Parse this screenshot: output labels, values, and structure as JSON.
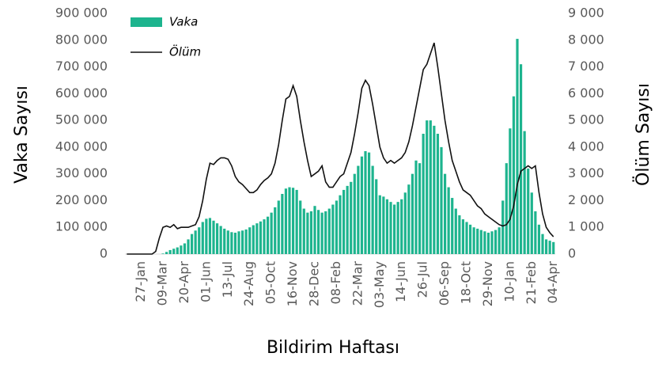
{
  "chart_data": {
    "type": "bar_line",
    "x_label": "Bildirim Haftası",
    "y_label": "Vaka Sayısı",
    "y2_label": "Ölüm Sayısı",
    "legend": "top-left",
    "categories": [
      null,
      null,
      null,
      null,
      "27-Jan",
      null,
      null,
      null,
      null,
      null,
      "09-Mar",
      null,
      null,
      null,
      null,
      null,
      "20-Apr",
      null,
      null,
      null,
      null,
      null,
      "01-Jun",
      null,
      null,
      null,
      null,
      null,
      "13-Jul",
      null,
      null,
      null,
      null,
      null,
      "24-Aug",
      null,
      null,
      null,
      null,
      null,
      "05-Oct",
      null,
      null,
      null,
      null,
      null,
      "16-Nov",
      null,
      null,
      null,
      null,
      null,
      "28-Dec",
      null,
      null,
      null,
      null,
      null,
      "08-Feb",
      null,
      null,
      null,
      null,
      null,
      "22-Mar",
      null,
      null,
      null,
      null,
      null,
      "03-May",
      null,
      null,
      null,
      null,
      null,
      "14-Jun",
      null,
      null,
      null,
      null,
      null,
      "26-Jul",
      null,
      null,
      null,
      null,
      null,
      "06-Sep",
      null,
      null,
      null,
      null,
      null,
      "18-Oct",
      null,
      null,
      null,
      null,
      null,
      "29-Nov",
      null,
      null,
      null,
      null,
      null,
      "10-Jan",
      null,
      null,
      null,
      null,
      null,
      "21-Feb",
      null,
      null,
      null,
      null,
      null,
      "04-Apr"
    ],
    "series": [
      {
        "name": "Vaka",
        "kind": "bar",
        "color": "#1db48e",
        "values": [
          0,
          0,
          0,
          0,
          0,
          0,
          0,
          0,
          0,
          0,
          2000,
          8000,
          15000,
          20000,
          25000,
          32000,
          40000,
          55000,
          75000,
          88000,
          100000,
          120000,
          132000,
          135000,
          125000,
          115000,
          105000,
          95000,
          88000,
          82000,
          80000,
          85000,
          88000,
          92000,
          100000,
          108000,
          115000,
          122000,
          130000,
          140000,
          155000,
          175000,
          200000,
          225000,
          245000,
          250000,
          248000,
          240000,
          200000,
          170000,
          155000,
          160000,
          180000,
          165000,
          155000,
          160000,
          170000,
          185000,
          200000,
          220000,
          240000,
          255000,
          270000,
          300000,
          330000,
          365000,
          385000,
          380000,
          330000,
          280000,
          220000,
          215000,
          205000,
          195000,
          185000,
          195000,
          205000,
          230000,
          260000,
          300000,
          350000,
          340000,
          450000,
          500000,
          500000,
          480000,
          450000,
          400000,
          300000,
          250000,
          210000,
          170000,
          145000,
          130000,
          120000,
          110000,
          100000,
          95000,
          90000,
          85000,
          80000,
          85000,
          90000,
          100000,
          200000,
          340000,
          470000,
          590000,
          805000,
          710000,
          460000,
          320000,
          230000,
          160000,
          110000,
          75000,
          55000,
          50000,
          45000
        ]
      },
      {
        "name": "Ölüm",
        "kind": "line",
        "axis": "y2",
        "color": "#111111",
        "values": [
          0,
          0,
          0,
          0,
          0,
          0,
          0,
          0,
          100,
          600,
          1000,
          1050,
          1000,
          1100,
          950,
          1000,
          1000,
          1000,
          1050,
          1100,
          1400,
          2000,
          2800,
          3400,
          3350,
          3500,
          3600,
          3600,
          3550,
          3300,
          2900,
          2700,
          2600,
          2450,
          2300,
          2300,
          2400,
          2600,
          2750,
          2850,
          3000,
          3400,
          4100,
          5000,
          5800,
          5900,
          6300,
          5900,
          5000,
          4200,
          3500,
          2900,
          3000,
          3100,
          3300,
          2700,
          2500,
          2500,
          2700,
          2900,
          3000,
          3400,
          3800,
          4500,
          5300,
          6200,
          6500,
          6300,
          5600,
          4800,
          4000,
          3600,
          3400,
          3500,
          3400,
          3500,
          3600,
          3800,
          4200,
          4800,
          5500,
          6200,
          6900,
          7100,
          7500,
          7900,
          7000,
          6000,
          5000,
          4200,
          3500,
          3100,
          2700,
          2400,
          2300,
          2200,
          2000,
          1800,
          1700,
          1500,
          1400,
          1300,
          1200,
          1100,
          1050,
          1100,
          1300,
          1800,
          2600,
          3100,
          3200,
          3300,
          3200,
          3300,
          2300,
          1500,
          1000,
          800,
          650
        ]
      }
    ],
    "ylim": [
      0,
      900000
    ],
    "yticks": [
      0,
      {
        "value": 100000,
        "label": "100 000"
      },
      {
        "value": 200000,
        "label": "200 000"
      },
      {
        "value": 300000,
        "label": "300 000"
      },
      {
        "value": 400000,
        "label": "400 000"
      },
      {
        "value": 500000,
        "label": "500 000"
      },
      {
        "value": 600000,
        "label": "600 000"
      },
      {
        "value": 700000,
        "label": "700 000"
      },
      {
        "value": 800000,
        "label": "800 000"
      },
      {
        "value": 900000,
        "label": "900 000"
      }
    ],
    "y2lim": [
      0,
      9000
    ],
    "y2ticks": [
      0,
      {
        "value": 1000,
        "label": "1 000"
      },
      {
        "value": 2000,
        "label": "2 000"
      },
      {
        "value": 3000,
        "label": "3 000"
      },
      {
        "value": 4000,
        "label": "4 000"
      },
      {
        "value": 5000,
        "label": "5 000"
      },
      {
        "value": 6000,
        "label": "6 000"
      },
      {
        "value": 7000,
        "label": "7 000"
      },
      {
        "value": 8000,
        "label": "8 000"
      },
      {
        "value": 9000,
        "label": "9 000"
      }
    ]
  }
}
